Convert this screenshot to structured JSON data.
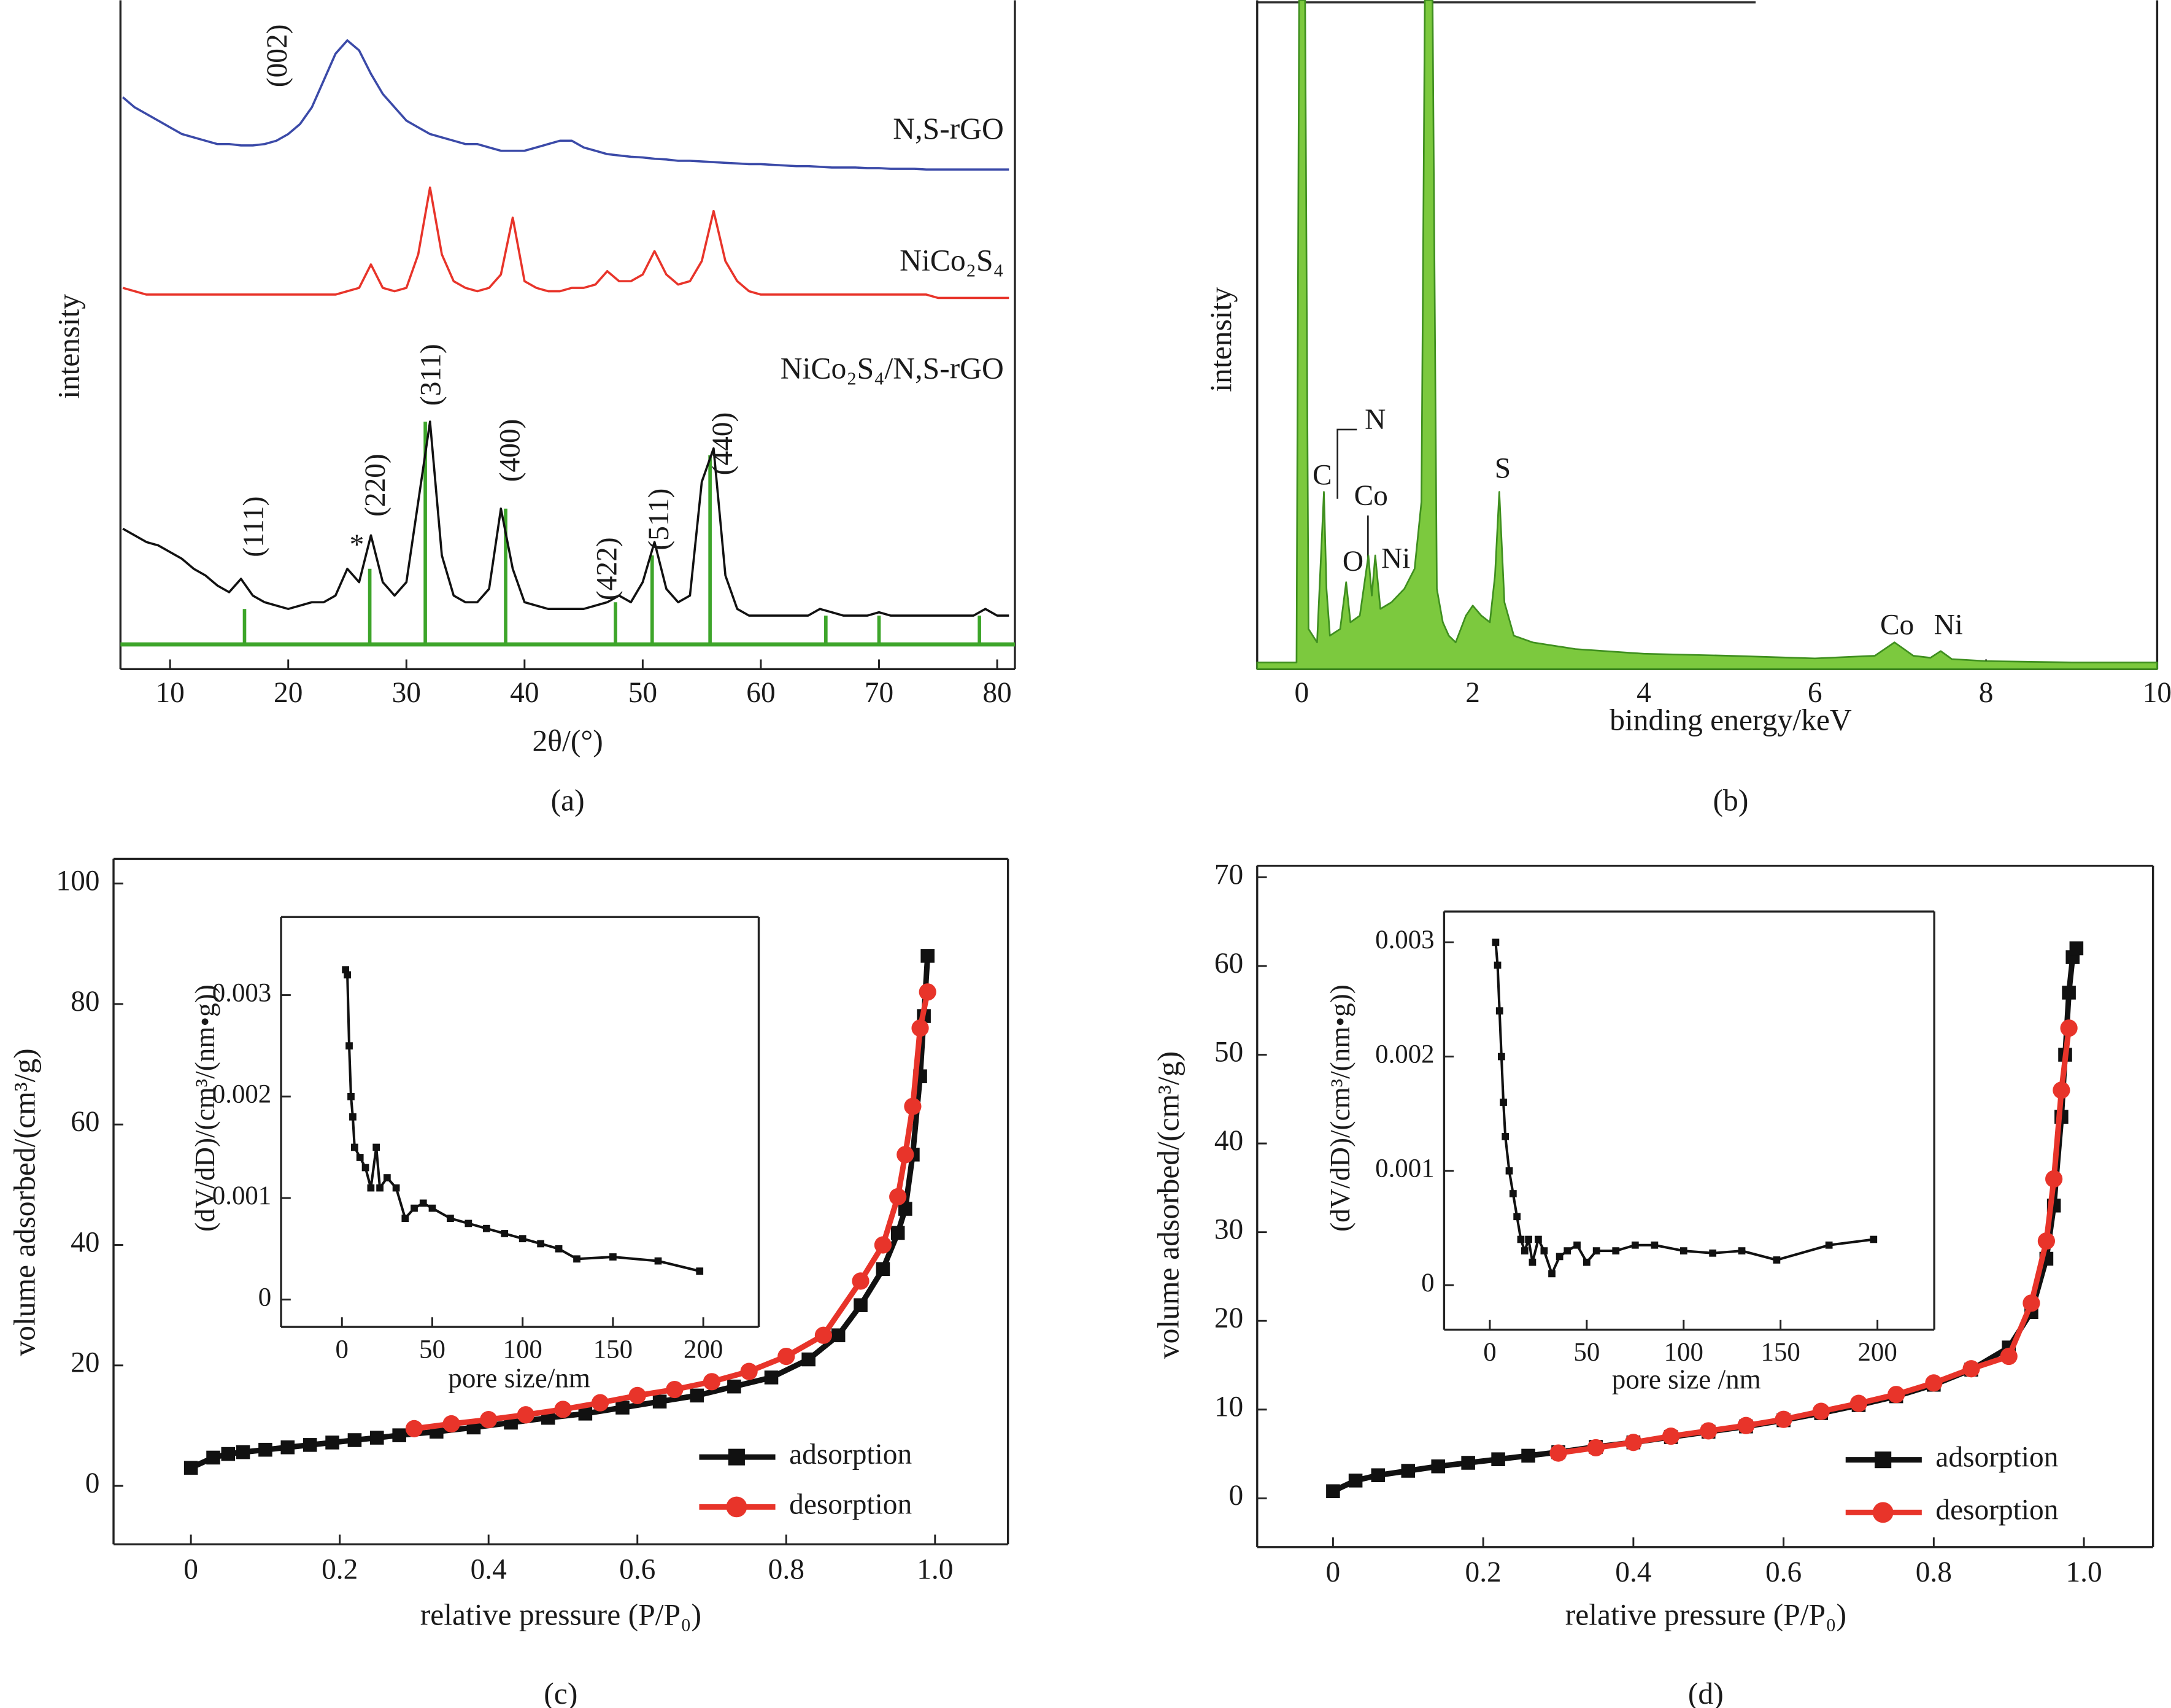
{
  "chart_data": [
    {
      "type": "line",
      "caption": "(a)",
      "xlabel": "2θ/(°)",
      "ylabel": "intensity",
      "xlim": [
        5.8,
        81.5
      ],
      "ylim": [
        0,
        100
      ],
      "xticks": [
        10,
        20,
        30,
        40,
        50,
        60,
        70,
        80
      ],
      "x": [
        6,
        7,
        8,
        9,
        10,
        11,
        12,
        13,
        14,
        15,
        16,
        17,
        18,
        19,
        20,
        21,
        22,
        23,
        24,
        25,
        26,
        27,
        28,
        29,
        30,
        31,
        32,
        33,
        34,
        35,
        36,
        37,
        38,
        39,
        40,
        41,
        42,
        43,
        44,
        45,
        46,
        47,
        48,
        49,
        50,
        51,
        52,
        53,
        54,
        55,
        56,
        57,
        58,
        59,
        60,
        61,
        62,
        63,
        64,
        65,
        66,
        67,
        68,
        69,
        70,
        71,
        72,
        73,
        74,
        75,
        76,
        77,
        78,
        79,
        80,
        81
      ],
      "series": [
        {
          "name": "N,S-rGO",
          "color": "#3b4aa8",
          "values": [
            85.5,
            84,
            83,
            82,
            81,
            80,
            79.5,
            79,
            78.5,
            78.5,
            78.3,
            78.3,
            78.5,
            79,
            80,
            81.5,
            84,
            88,
            92,
            94,
            92.5,
            89,
            86,
            84,
            82,
            81,
            80,
            79.5,
            79,
            78.5,
            78.5,
            78,
            77.5,
            77.5,
            77.5,
            78,
            78.5,
            79,
            79,
            78,
            77.5,
            77,
            76.8,
            76.6,
            76.5,
            76.3,
            76.2,
            76,
            76,
            75.9,
            75.8,
            75.7,
            75.6,
            75.5,
            75.5,
            75.4,
            75.3,
            75.2,
            75.2,
            75.1,
            75,
            75,
            75,
            74.9,
            74.9,
            74.8,
            74.8,
            74.8,
            74.7,
            74.7,
            74.7,
            74.7,
            74.7,
            74.7,
            74.7,
            74.7
          ]
        },
        {
          "name": "NiCo₂S₄",
          "color": "#e8342a",
          "values": [
            57,
            56.5,
            56,
            56,
            56,
            56,
            56,
            56,
            56,
            56,
            56,
            56,
            56,
            56,
            56,
            56,
            56,
            56,
            56,
            56.5,
            57,
            60.5,
            57,
            56.5,
            57,
            62,
            72,
            62,
            58,
            57,
            56.5,
            57,
            59,
            67.5,
            58,
            57,
            56.5,
            56.5,
            57,
            57,
            57.5,
            59.5,
            58,
            58,
            59,
            62.5,
            59,
            57.5,
            58,
            61,
            68.5,
            61,
            58,
            56.5,
            56,
            56,
            56,
            56,
            56,
            56,
            56,
            56,
            56,
            56,
            56,
            56,
            56,
            56,
            56,
            55.5,
            55.5,
            55.5,
            55.5,
            55.5,
            55.5,
            55.5
          ]
        },
        {
          "name": "NiCo₂S₄/N,S-rGO",
          "color": "#111111",
          "values": [
            21,
            20,
            19,
            18.5,
            17.5,
            16.5,
            15,
            14,
            12.5,
            11.5,
            13.5,
            11,
            10,
            9.5,
            9,
            9.5,
            10,
            10,
            11,
            15,
            13,
            20,
            13,
            11,
            13,
            25,
            37,
            17,
            11,
            10,
            10,
            12,
            24,
            15,
            10,
            9.5,
            9,
            9,
            9,
            9,
            9.5,
            10,
            11,
            10,
            13,
            19,
            12,
            10,
            11,
            28,
            33,
            14,
            9,
            8,
            8,
            8,
            8,
            8,
            8,
            9,
            8.5,
            8,
            8,
            8,
            8.5,
            8,
            8,
            8,
            8,
            8,
            8,
            8,
            8,
            9,
            8,
            8
          ]
        }
      ],
      "sticks": {
        "color": "#3da52a",
        "baseline": 3.7,
        "x": [
          16.3,
          26.9,
          31.6,
          38.4,
          47.7,
          50.8,
          55.7,
          65.5,
          70,
          78.5
        ],
        "values": [
          9,
          15,
          37,
          24,
          10,
          17,
          32,
          8,
          8,
          8
        ]
      },
      "annotations": [
        {
          "text": "(002)",
          "x": 19.3,
          "y": 91.7
        },
        {
          "text": "(111)",
          "x": 17.3,
          "y": 21.3
        },
        {
          "text": "*",
          "x": 25.8,
          "y": 18.2
        },
        {
          "text": "(220)",
          "x": 27.6,
          "y": 27.5
        },
        {
          "text": "(311)",
          "x": 32.3,
          "y": 44
        },
        {
          "text": "(400)",
          "x": 39,
          "y": 32.7
        },
        {
          "text": "(422)",
          "x": 47.2,
          "y": 15
        },
        {
          "text": "(511)",
          "x": 51.6,
          "y": 22.4
        },
        {
          "text": "(440)",
          "x": 57,
          "y": 33.7
        }
      ]
    },
    {
      "type": "area",
      "caption": "(b)",
      "xlabel": "binding energy/keV",
      "ylabel": "intensity",
      "xlim": [
        -0.52,
        10
      ],
      "ylim": [
        0,
        100
      ],
      "xticks": [
        0,
        2,
        4,
        6,
        8,
        10
      ],
      "x": [
        -0.52,
        -0.06,
        -0.03,
        0.04,
        0.08,
        0.18,
        0.26,
        0.29,
        0.33,
        0.45,
        0.52,
        0.57,
        0.68,
        0.78,
        0.82,
        0.86,
        0.92,
        1.05,
        1.2,
        1.32,
        1.4,
        1.44,
        1.53,
        1.58,
        1.65,
        1.72,
        1.8,
        1.92,
        2.0,
        2.1,
        2.2,
        2.26,
        2.31,
        2.37,
        2.48,
        2.7,
        3.2,
        4,
        5,
        6,
        6.7,
        6.93,
        7.15,
        7.35,
        7.47,
        7.6,
        8,
        9,
        10
      ],
      "series": [
        {
          "color": "#7cc93e",
          "values": [
            1,
            1,
            100,
            100,
            6,
            4,
            26.5,
            12,
            5,
            6,
            13,
            7,
            8,
            17,
            11,
            17,
            9,
            10,
            12,
            15,
            25,
            100,
            100,
            12,
            7,
            5,
            4,
            8,
            9.5,
            8,
            7,
            14,
            26.5,
            10,
            5,
            4,
            3,
            2.3,
            2,
            1.6,
            2,
            4,
            2,
            1.7,
            2.7,
            1.5,
            1.2,
            1,
            1
          ]
        }
      ],
      "annotations": [
        {
          "text": "C",
          "x": 0.24,
          "y": 28.6
        },
        {
          "text": "N",
          "x": 0.86,
          "y": 36.9
        },
        {
          "text": "Co",
          "x": 0.81,
          "y": 25.5
        },
        {
          "text": "O",
          "x": 0.6,
          "y": 15.7
        },
        {
          "text": "Ni",
          "x": 1.1,
          "y": 16.1
        },
        {
          "text": "S",
          "x": 2.35,
          "y": 29.6
        },
        {
          "text": "Co",
          "x": 6.96,
          "y": 6.2
        },
        {
          "text": "Ni",
          "x": 7.56,
          "y": 6.2
        }
      ]
    },
    {
      "type": "line",
      "caption": "(c)",
      "xlabel": "relative pressure (P/P₀)",
      "ylabel": "volume adsorbed/(cm³/g)",
      "xlim": [
        -0.104,
        1.098
      ],
      "ylim": [
        -9.7,
        104.1
      ],
      "xticks": [
        0,
        0.2,
        0.4,
        0.6,
        0.8,
        {
          "value": 1,
          "label": "1.0"
        }
      ],
      "yticks": [
        0,
        20,
        40,
        60,
        80,
        100
      ],
      "legend": "lower right",
      "series": [
        {
          "name": "adsorption",
          "color": "#111111",
          "marker": "square",
          "x": [
            0,
            0.03,
            0.05,
            0.07,
            0.1,
            0.13,
            0.16,
            0.19,
            0.22,
            0.25,
            0.28,
            0.33,
            0.38,
            0.43,
            0.48,
            0.53,
            0.58,
            0.63,
            0.68,
            0.73,
            0.78,
            0.83,
            0.87,
            0.9,
            0.93,
            0.95,
            0.96,
            0.97,
            0.98,
            0.985,
            0.99
          ],
          "values": [
            3,
            4.7,
            5.3,
            5.6,
            6,
            6.4,
            6.8,
            7.2,
            7.6,
            8,
            8.4,
            9,
            9.7,
            10.5,
            11.3,
            12,
            13,
            14,
            15,
            16.5,
            18,
            21,
            25,
            30,
            36,
            42,
            46,
            55,
            68,
            78,
            88
          ]
        },
        {
          "name": "desorption",
          "color": "#e8342a",
          "marker": "circle",
          "x": [
            0.3,
            0.35,
            0.4,
            0.45,
            0.5,
            0.55,
            0.6,
            0.65,
            0.7,
            0.75,
            0.8,
            0.85,
            0.9,
            0.93,
            0.95,
            0.96,
            0.97,
            0.98,
            0.99
          ],
          "values": [
            9.5,
            10.3,
            11,
            11.8,
            12.7,
            13.8,
            15,
            16,
            17.3,
            19,
            21.5,
            25,
            34,
            40,
            48,
            55,
            63,
            76,
            82
          ]
        }
      ]
    },
    {
      "type": "line",
      "xlabel": "pore size/nm",
      "ylabel": "(dV/dD)/(cm³/(nm•g))",
      "xlim": [
        -33.7,
        230.7
      ],
      "ylim": [
        -0.00027,
        0.00377
      ],
      "xticks": [
        0,
        50,
        100,
        150,
        200
      ],
      "yticks": [
        0,
        0.001,
        0.002,
        0.003
      ],
      "series": [
        {
          "color": "#111111",
          "marker": "square",
          "x": [
            2,
            3,
            4,
            5,
            6,
            7,
            10,
            13,
            16,
            19,
            21,
            25,
            30,
            35,
            40,
            45,
            50,
            60,
            70,
            80,
            90,
            100,
            110,
            120,
            130,
            150,
            175,
            198
          ],
          "values": [
            0.00325,
            0.0032,
            0.0025,
            0.002,
            0.0018,
            0.0015,
            0.0014,
            0.0013,
            0.0011,
            0.0015,
            0.0011,
            0.0012,
            0.0011,
            0.0008,
            0.0009,
            0.00095,
            0.0009,
            0.0008,
            0.00075,
            0.0007,
            0.00065,
            0.0006,
            0.00055,
            0.0005,
            0.0004,
            0.00042,
            0.00038,
            0.00028
          ]
        }
      ]
    },
    {
      "type": "line",
      "caption": "(d)",
      "xlabel": "relative pressure (P/P₀)",
      "ylabel": "volume adsorbed/(cm³/g)",
      "xlim": [
        -0.101,
        1.092
      ],
      "ylim": [
        -5.5,
        71.3
      ],
      "xticks": [
        0,
        0.2,
        0.4,
        0.6,
        0.8,
        {
          "value": 1,
          "label": "1.0"
        }
      ],
      "yticks": [
        0,
        10,
        20,
        30,
        40,
        50,
        60,
        70
      ],
      "legend": "lower right",
      "series": [
        {
          "name": "adsorption",
          "color": "#111111",
          "marker": "square",
          "x": [
            0,
            0.03,
            0.06,
            0.1,
            0.14,
            0.18,
            0.22,
            0.26,
            0.3,
            0.35,
            0.4,
            0.45,
            0.5,
            0.55,
            0.6,
            0.65,
            0.7,
            0.75,
            0.8,
            0.85,
            0.9,
            0.93,
            0.95,
            0.96,
            0.97,
            0.975,
            0.98,
            0.985,
            0.99
          ],
          "values": [
            0.8,
            2,
            2.6,
            3.1,
            3.6,
            4,
            4.4,
            4.8,
            5.2,
            5.8,
            6.3,
            6.9,
            7.5,
            8.1,
            8.8,
            9.6,
            10.5,
            11.5,
            12.8,
            14.5,
            17,
            21,
            27,
            33,
            43,
            50,
            57,
            61,
            62
          ]
        },
        {
          "name": "desorption",
          "color": "#e8342a",
          "marker": "circle",
          "x": [
            0.3,
            0.35,
            0.4,
            0.45,
            0.5,
            0.55,
            0.6,
            0.65,
            0.7,
            0.75,
            0.8,
            0.85,
            0.9,
            0.93,
            0.95,
            0.96,
            0.97,
            0.98
          ],
          "values": [
            5.1,
            5.7,
            6.3,
            7,
            7.6,
            8.2,
            8.9,
            9.8,
            10.7,
            11.7,
            13,
            14.6,
            16,
            22,
            29,
            36,
            46,
            53
          ]
        }
      ]
    },
    {
      "type": "line",
      "xlabel": "pore size /nm",
      "ylabel": "(dV/dD)/(cm³/(nm•g))",
      "xlim": [
        -23.6,
        229.3
      ],
      "ylim": [
        -0.00039,
        0.00327
      ],
      "xticks": [
        0,
        50,
        100,
        150,
        200
      ],
      "yticks": [
        0,
        0.001,
        0.002,
        0.003
      ],
      "series": [
        {
          "color": "#111111",
          "marker": "square",
          "x": [
            3,
            4,
            5,
            6,
            7,
            8,
            10,
            12,
            14,
            16,
            18,
            20,
            22,
            25,
            28,
            32,
            36,
            40,
            45,
            50,
            55,
            65,
            75,
            85,
            100,
            115,
            130,
            148,
            175,
            198
          ],
          "values": [
            0.003,
            0.0028,
            0.0024,
            0.002,
            0.0016,
            0.0013,
            0.001,
            0.0008,
            0.0006,
            0.0004,
            0.0003,
            0.0004,
            0.0002,
            0.0004,
            0.0003,
            0.0001,
            0.00025,
            0.0003,
            0.00035,
            0.0002,
            0.0003,
            0.0003,
            0.00035,
            0.00035,
            0.0003,
            0.00028,
            0.0003,
            0.00022,
            0.00035,
            0.0004
          ]
        }
      ]
    }
  ]
}
